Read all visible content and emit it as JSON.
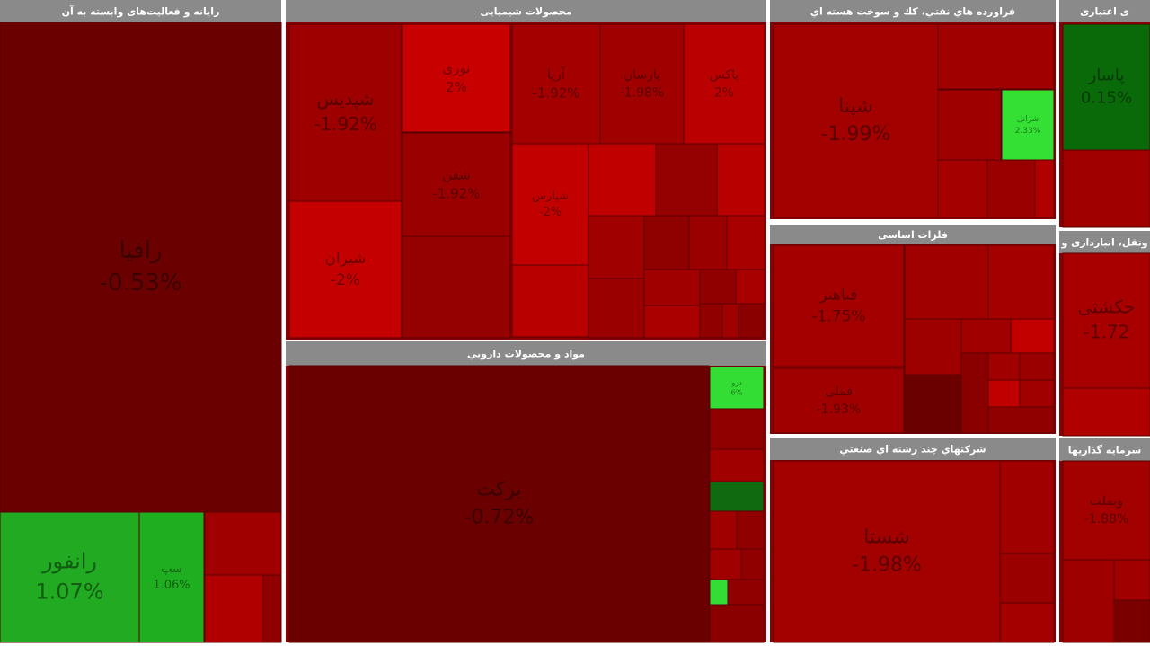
{
  "sectors": [
    {
      "title": "رایانه و فعالیت‌های وابسته به آن",
      "tiles": [
        {
          "name": "رافیا",
          "change": "-0.53%"
        },
        {
          "name": "رانفور",
          "change": "1.07%"
        },
        {
          "name": "سپ",
          "change": "1.06%"
        }
      ]
    },
    {
      "title": "محصولات شیمیایی",
      "tiles": [
        {
          "name": "شپدیس",
          "change": "-1.92%"
        },
        {
          "name": "شیران",
          "change": "-2%"
        },
        {
          "name": "نوری",
          "change": "2%"
        },
        {
          "name": "شفن",
          "change": "-1.92%"
        },
        {
          "name": "آریا",
          "change": "-1.92%"
        },
        {
          "name": "پارسان",
          "change": "-1.98%"
        },
        {
          "name": "پاکس",
          "change": "2%"
        },
        {
          "name": "شپارس",
          "change": "-2%"
        }
      ]
    },
    {
      "title": "مواد و محصولات دارويي",
      "tiles": [
        {
          "name": "برکت",
          "change": "-0.72%"
        },
        {
          "name": "دزو",
          "change": "6%"
        }
      ]
    },
    {
      "title": "فراورده هاي نفتي، كك و سوخت هسته اي",
      "tiles": [
        {
          "name": "شپنا",
          "change": "-1.99%"
        },
        {
          "name": "شرانل",
          "change": "2.33%"
        }
      ]
    },
    {
      "title": "فلزات اساسی",
      "tiles": [
        {
          "name": "فباهنر",
          "change": "-1.75%"
        },
        {
          "name": "فملی",
          "change": "-1.93%"
        }
      ]
    },
    {
      "title": "شرکتهاي چند رشته اي صنعتي",
      "tiles": [
        {
          "name": "شستا",
          "change": "-1.98%"
        }
      ]
    },
    {
      "title": "ی اعتباری",
      "tiles": [
        {
          "name": "پاسار",
          "change": "0.15%"
        }
      ]
    },
    {
      "title": "ونقل، انبارداری و",
      "tiles": [
        {
          "name": "حکشتی",
          "change": "-1.72"
        }
      ]
    },
    {
      "title": "سرمایه گذاریها",
      "tiles": [
        {
          "name": "وبملت",
          "change": "-1.88%"
        }
      ]
    }
  ]
}
